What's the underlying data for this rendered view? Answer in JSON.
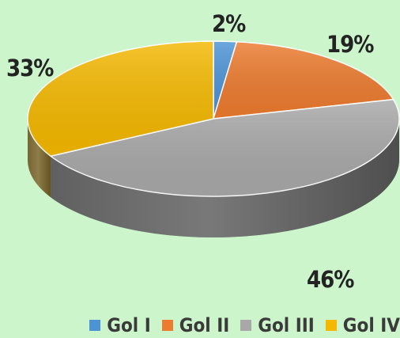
{
  "chart_data": {
    "type": "pie",
    "title": "",
    "categories": [
      "Gol I",
      "Gol II",
      "Gol III",
      "Gol IV"
    ],
    "values": [
      2,
      19,
      46,
      33
    ],
    "labels": [
      "2%",
      "19%",
      "46%",
      "33%"
    ],
    "colors": [
      "#4c93d6",
      "#ec7b2f",
      "#a8a8a8",
      "#f4b800"
    ],
    "style": "3d",
    "legend": "bottom"
  }
}
